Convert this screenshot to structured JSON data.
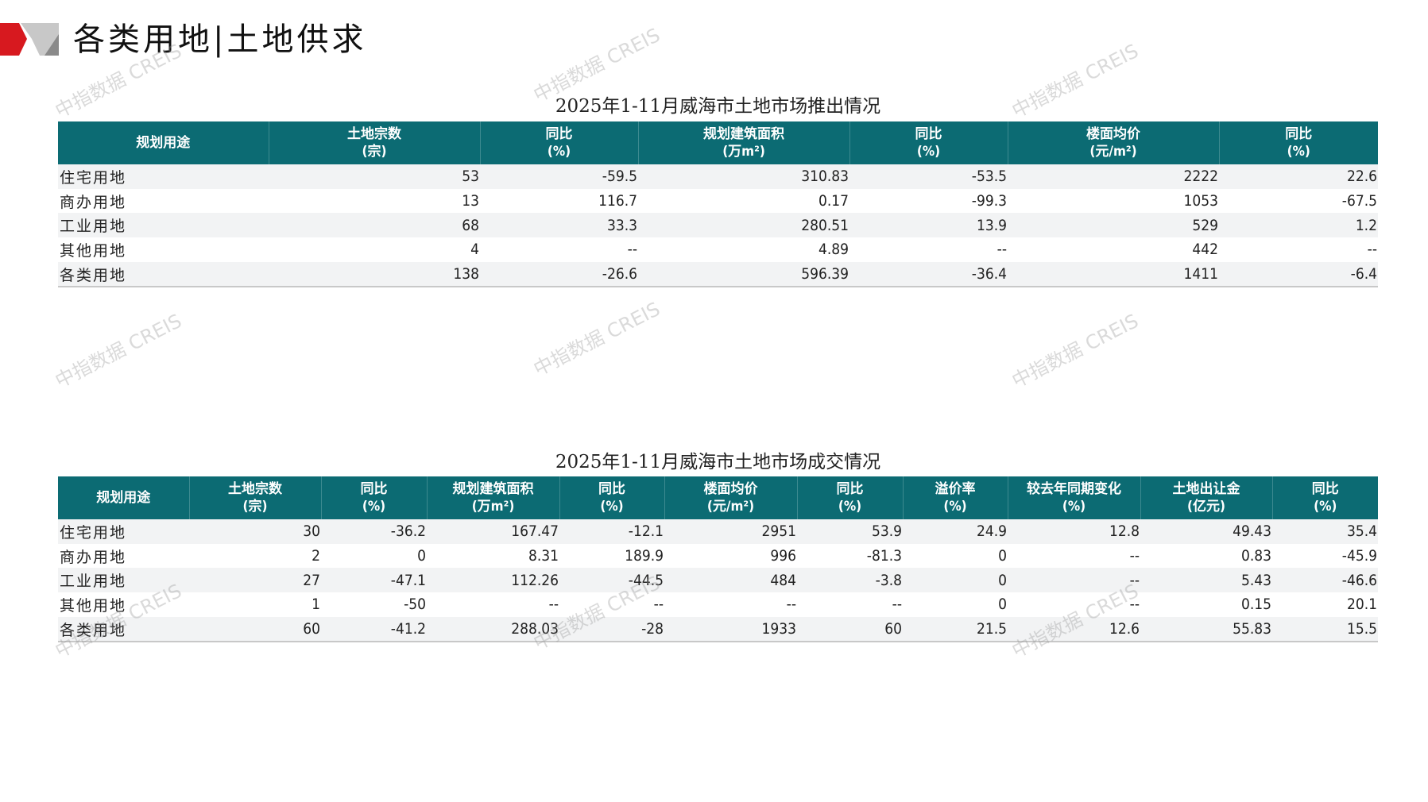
{
  "header": {
    "title": "各类用地|土地供求"
  },
  "colors": {
    "header_bg": "#0c6b73",
    "logo_red": "#d7191f",
    "logo_gray": "#c8c8c8"
  },
  "watermark": "中指数据 CREIS",
  "supply_table": {
    "title": "2025年1-11月威海市土地市场推出情况",
    "columns": [
      [
        "规划用途",
        ""
      ],
      [
        "土地宗数",
        "(宗)"
      ],
      [
        "同比",
        "(%)"
      ],
      [
        "规划建筑面积",
        "(万m²)"
      ],
      [
        "同比",
        "(%)"
      ],
      [
        "楼面均价",
        "(元/m²)"
      ],
      [
        "同比",
        "(%)"
      ]
    ],
    "rows": [
      [
        "住宅用地",
        "53",
        "-59.5",
        "310.83",
        "-53.5",
        "2222",
        "22.6"
      ],
      [
        "商办用地",
        "13",
        "116.7",
        "0.17",
        "-99.3",
        "1053",
        "-67.5"
      ],
      [
        "工业用地",
        "68",
        "33.3",
        "280.51",
        "13.9",
        "529",
        "1.2"
      ],
      [
        "其他用地",
        "4",
        "--",
        "4.89",
        "--",
        "442",
        "--"
      ],
      [
        "各类用地",
        "138",
        "-26.6",
        "596.39",
        "-36.4",
        "1411",
        "-6.4"
      ]
    ]
  },
  "deal_table": {
    "title": "2025年1-11月威海市土地市场成交情况",
    "columns": [
      [
        "规划用途",
        ""
      ],
      [
        "土地宗数",
        "(宗)"
      ],
      [
        "同比",
        "(%)"
      ],
      [
        "规划建筑面积",
        "(万m²)"
      ],
      [
        "同比",
        "(%)"
      ],
      [
        "楼面均价",
        "(元/m²)"
      ],
      [
        "同比",
        "(%)"
      ],
      [
        "溢价率",
        "(%)"
      ],
      [
        "较去年同期变化",
        "(%)"
      ],
      [
        "土地出让金",
        "(亿元)"
      ],
      [
        "同比",
        "(%)"
      ]
    ],
    "rows": [
      [
        "住宅用地",
        "30",
        "-36.2",
        "167.47",
        "-12.1",
        "2951",
        "53.9",
        "24.9",
        "12.8",
        "49.43",
        "35.4"
      ],
      [
        "商办用地",
        "2",
        "0",
        "8.31",
        "189.9",
        "996",
        "-81.3",
        "0",
        "--",
        "0.83",
        "-45.9"
      ],
      [
        "工业用地",
        "27",
        "-47.1",
        "112.26",
        "-44.5",
        "484",
        "-3.8",
        "0",
        "--",
        "5.43",
        "-46.6"
      ],
      [
        "其他用地",
        "1",
        "-50",
        "--",
        "--",
        "--",
        "--",
        "0",
        "--",
        "0.15",
        "20.1"
      ],
      [
        "各类用地",
        "60",
        "-41.2",
        "288.03",
        "-28",
        "1933",
        "60",
        "21.5",
        "12.6",
        "55.83",
        "15.5"
      ]
    ]
  }
}
